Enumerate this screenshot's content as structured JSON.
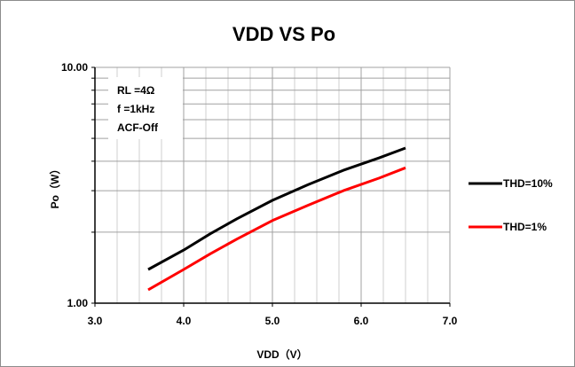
{
  "chart_data": {
    "type": "line",
    "title": "VDD VS Po",
    "xlabel": "VDD（V）",
    "ylabel": "Po（W）",
    "xlim": [
      3.0,
      7.0
    ],
    "ylim": [
      1.0,
      10.0
    ],
    "yscale": "log",
    "grid": true,
    "x_ticks": [
      "3.0",
      "4.0",
      "5.0",
      "6.0",
      "7.0"
    ],
    "y_ticks": [
      "1.00",
      "10.00"
    ],
    "annotations": [
      "RL =4Ω",
      "f =1kHz",
      "ACF-Off"
    ],
    "legend_position": "right",
    "series": [
      {
        "name": "THD=10%",
        "color": "#000000",
        "points": [
          [
            3.6,
            1.39
          ],
          [
            4.0,
            1.68
          ],
          [
            4.3,
            1.97
          ],
          [
            4.6,
            2.28
          ],
          [
            5.0,
            2.73
          ],
          [
            5.4,
            3.18
          ],
          [
            5.8,
            3.66
          ],
          [
            6.2,
            4.13
          ],
          [
            6.5,
            4.55
          ]
        ]
      },
      {
        "name": "THD=1%",
        "color": "#ff0000",
        "points": [
          [
            3.6,
            1.14
          ],
          [
            4.0,
            1.39
          ],
          [
            4.3,
            1.62
          ],
          [
            4.6,
            1.87
          ],
          [
            5.0,
            2.24
          ],
          [
            5.4,
            2.6
          ],
          [
            5.8,
            3.0
          ],
          [
            6.2,
            3.39
          ],
          [
            6.5,
            3.75
          ]
        ]
      }
    ]
  }
}
